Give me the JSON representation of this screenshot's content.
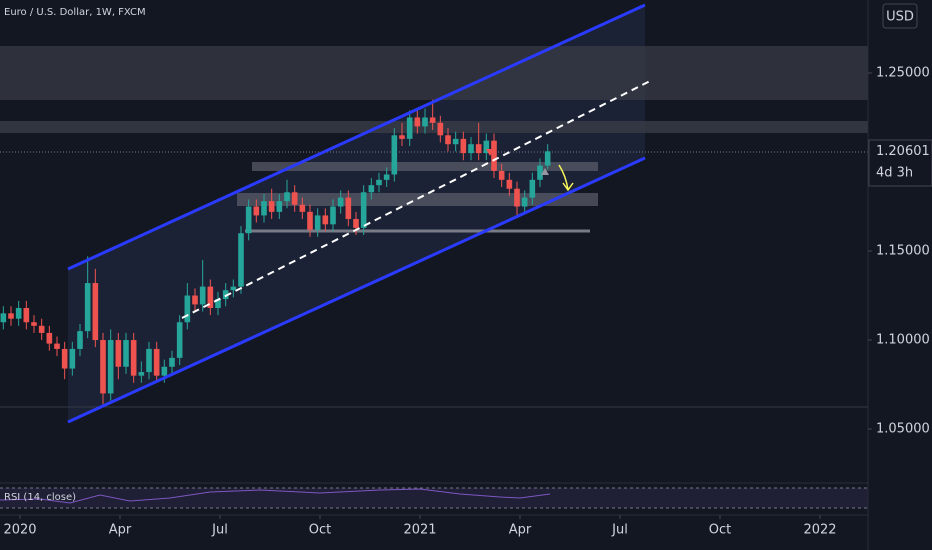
{
  "chart_data": {
    "type": "candlestick",
    "title": "Euro / U.S. Dollar, 1W, FXCM",
    "currency": "USD",
    "x": [
      -0.5,
      -0.27,
      -0.04,
      0.19,
      0.42,
      0.65,
      0.88,
      1.11,
      1.34,
      1.57,
      1.8,
      2.03,
      2.26,
      2.49,
      2.72,
      2.95,
      3.18,
      3.41,
      3.64,
      3.87,
      4.1,
      4.33,
      4.56,
      4.79,
      5.02,
      5.25,
      5.48,
      5.71,
      5.94,
      6.17,
      6.4,
      6.63,
      6.86,
      7.09,
      7.32,
      7.55,
      7.78,
      8.01,
      8.24,
      8.47,
      8.7,
      8.93,
      9.16,
      9.39,
      9.62,
      9.85,
      10.08,
      10.31,
      10.54,
      10.77,
      11,
      11.23,
      11.46,
      11.69,
      11.92,
      12.15,
      12.38,
      12.61,
      12.84,
      13.07,
      13.3,
      13.53,
      13.76,
      13.99,
      14.22,
      14.45,
      14.68,
      14.91,
      15.14,
      15.37,
      15.6,
      15.83
    ],
    "open": [
      1.11,
      1.115,
      1.112,
      1.118,
      1.11,
      1.108,
      1.104,
      1.098,
      1.095,
      1.084,
      1.095,
      1.105,
      1.132,
      1.1,
      1.07,
      1.1,
      1.085,
      1.1,
      1.08,
      1.082,
      1.095,
      1.08,
      1.085,
      1.09,
      1.11,
      1.125,
      1.12,
      1.13,
      1.118,
      1.123,
      1.128,
      1.13,
      1.16,
      1.175,
      1.17,
      1.178,
      1.172,
      1.178,
      1.183,
      1.176,
      1.172,
      1.162,
      1.17,
      1.165,
      1.175,
      1.18,
      1.168,
      1.163,
      1.183,
      1.187,
      1.19,
      1.193,
      1.215,
      1.213,
      1.225,
      1.22,
      1.225,
      1.222,
      1.215,
      1.21,
      1.213,
      1.205,
      1.21,
      1.205,
      1.212,
      1.195,
      1.19,
      1.185,
      1.175,
      1.18,
      1.19,
      1.198
    ],
    "high": [
      1.119,
      1.119,
      1.122,
      1.122,
      1.114,
      1.112,
      1.108,
      1.102,
      1.099,
      1.099,
      1.109,
      1.147,
      1.14,
      1.104,
      1.106,
      1.104,
      1.104,
      1.104,
      1.088,
      1.099,
      1.099,
      1.089,
      1.094,
      1.114,
      1.132,
      1.129,
      1.145,
      1.134,
      1.127,
      1.132,
      1.134,
      1.164,
      1.179,
      1.179,
      1.182,
      1.185,
      1.182,
      1.19,
      1.187,
      1.18,
      1.176,
      1.174,
      1.174,
      1.179,
      1.184,
      1.184,
      1.172,
      1.187,
      1.191,
      1.194,
      1.197,
      1.219,
      1.222,
      1.229,
      1.229,
      1.23,
      1.235,
      1.226,
      1.219,
      1.217,
      1.217,
      1.214,
      1.222,
      1.216,
      1.216,
      1.199,
      1.194,
      1.189,
      1.184,
      1.194,
      1.202,
      1.21
    ],
    "low": [
      1.106,
      1.108,
      1.108,
      1.106,
      1.104,
      1.1,
      1.094,
      1.091,
      1.078,
      1.08,
      1.091,
      1.101,
      1.096,
      1.064,
      1.066,
      1.078,
      1.081,
      1.076,
      1.076,
      1.078,
      1.076,
      1.076,
      1.081,
      1.086,
      1.106,
      1.116,
      1.116,
      1.114,
      1.114,
      1.119,
      1.124,
      1.126,
      1.156,
      1.166,
      1.166,
      1.168,
      1.168,
      1.174,
      1.172,
      1.168,
      1.158,
      1.158,
      1.161,
      1.161,
      1.171,
      1.164,
      1.159,
      1.159,
      1.179,
      1.183,
      1.186,
      1.189,
      1.209,
      1.209,
      1.216,
      1.216,
      1.218,
      1.211,
      1.206,
      1.206,
      1.201,
      1.201,
      1.201,
      1.201,
      1.191,
      1.186,
      1.181,
      1.17,
      1.171,
      1.176,
      1.186,
      1.196
    ],
    "close": [
      1.115,
      1.112,
      1.118,
      1.11,
      1.108,
      1.104,
      1.098,
      1.095,
      1.084,
      1.095,
      1.105,
      1.132,
      1.1,
      1.07,
      1.1,
      1.085,
      1.1,
      1.08,
      1.082,
      1.095,
      1.08,
      1.085,
      1.09,
      1.11,
      1.125,
      1.12,
      1.13,
      1.118,
      1.123,
      1.128,
      1.13,
      1.16,
      1.175,
      1.17,
      1.178,
      1.172,
      1.178,
      1.183,
      1.176,
      1.172,
      1.162,
      1.17,
      1.165,
      1.175,
      1.18,
      1.168,
      1.163,
      1.183,
      1.187,
      1.19,
      1.193,
      1.215,
      1.213,
      1.225,
      1.22,
      1.225,
      1.222,
      1.215,
      1.21,
      1.213,
      1.205,
      1.21,
      1.205,
      1.212,
      1.195,
      1.19,
      1.185,
      1.175,
      1.18,
      1.19,
      1.198,
      1.206
    ],
    "up_color": "#26a69a",
    "down_color": "#ef5350",
    "last_price": 1.20601,
    "countdown": "4d 3h",
    "xlim": [
      -0.6,
      25.44
    ],
    "xticks": [
      {
        "value": 0,
        "label": "2020"
      },
      {
        "value": 3,
        "label": "Apr"
      },
      {
        "value": 6,
        "label": "Jul"
      },
      {
        "value": 9,
        "label": "Oct"
      },
      {
        "value": 12,
        "label": "2021"
      },
      {
        "value": 15,
        "label": "Apr"
      },
      {
        "value": 18,
        "label": "Jul"
      },
      {
        "value": 21,
        "label": "Oct"
      },
      {
        "value": 24,
        "label": "2022"
      }
    ],
    "ylim": [
      1.0197,
      1.291
    ],
    "yticks": [
      {
        "value": 1.05,
        "label": "1.05000"
      },
      {
        "value": 1.1,
        "label": "1.10000"
      },
      {
        "value": 1.15,
        "label": "1.15000"
      },
      {
        "value": 1.25,
        "label": "1.25000"
      }
    ],
    "indicator": "RSI (14, close)",
    "grid": false
  }
}
